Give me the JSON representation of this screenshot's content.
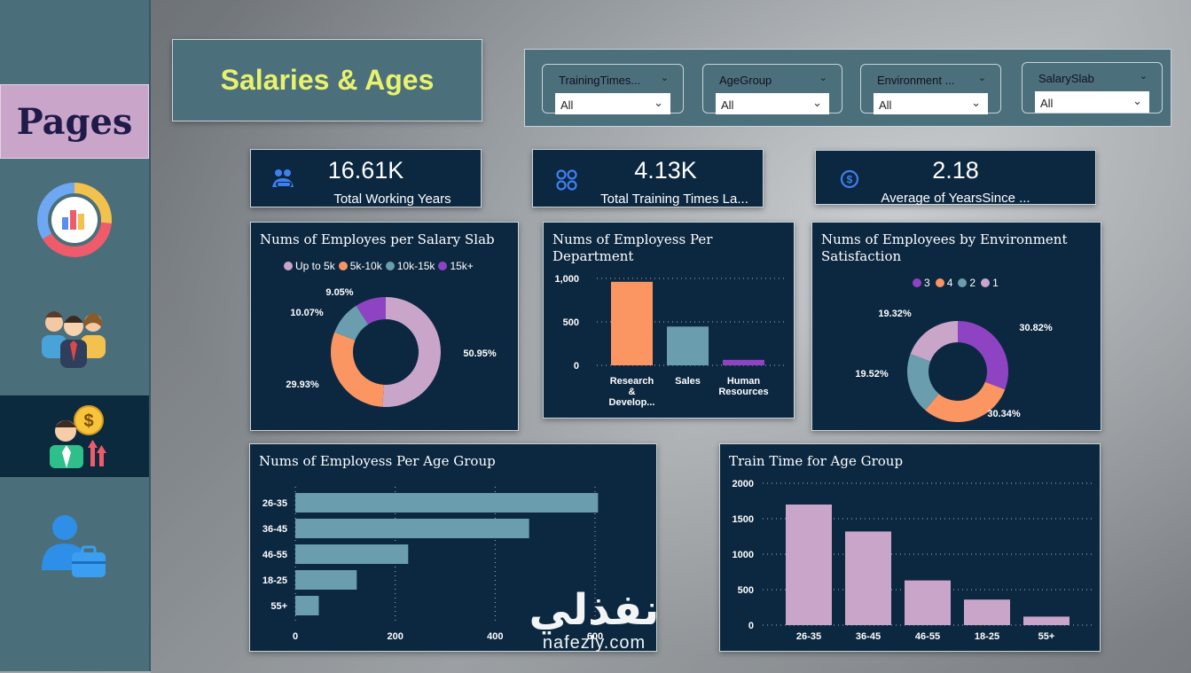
{
  "sidebar": {
    "title": "Pages",
    "nav_icons": [
      "dashboard-chart-icon",
      "team-people-icon",
      "salary-employee-icon",
      "employee-briefcase-icon"
    ],
    "active_index": 2
  },
  "header": {
    "title": "Salaries & Ages"
  },
  "filters": [
    {
      "label": "TrainingTimes...",
      "value": "All"
    },
    {
      "label": "AgeGroup",
      "value": "All"
    },
    {
      "label": "Environment ...",
      "value": "All"
    },
    {
      "label": "SalarySlab",
      "value": "All"
    }
  ],
  "kpis": [
    {
      "value": "16.61K",
      "label": "Total Working Years",
      "icon": "team-handshake-icon"
    },
    {
      "value": "4.13K",
      "label": "Total Training Times La...",
      "icon": "grid-circles-icon"
    },
    {
      "value": "2.18",
      "label": "Average of YearsSince ...",
      "icon": "dollar-coin-icon"
    }
  ],
  "colors": {
    "pink": "#c9a5c9",
    "orange": "#fb9562",
    "teal": "#6a9eaf",
    "purple": "#8e44c2",
    "navy": "#0c2840",
    "title_yellow": "#e9f26d"
  },
  "watermark": {
    "arabic": "نفذلي",
    "latin": "nafezly.com"
  },
  "chart_data": [
    {
      "type": "pie",
      "variant": "donut",
      "title": "Nums of Employes per Salary Slab",
      "legend": [
        "Up to 5k",
        "5k-10k",
        "10k-15k",
        "15k+"
      ],
      "legend_position": "top",
      "slices": [
        {
          "name": "Up to 5k",
          "value": 50.95,
          "label": "50.95%"
        },
        {
          "name": "5k-10k",
          "value": 29.93,
          "label": "29.93%"
        },
        {
          "name": "10k-15k",
          "value": 10.07,
          "label": "10.07%"
        },
        {
          "name": "15k+",
          "value": 9.05,
          "label": "9.05%"
        }
      ]
    },
    {
      "type": "bar",
      "title": "Nums of Employess Per Department",
      "categories": [
        "Research & Develop...",
        "Sales",
        "Human Resources"
      ],
      "category_lines": [
        [
          "Research",
          "&",
          "Develop..."
        ],
        [
          "Sales"
        ],
        [
          "Human",
          "Resources"
        ]
      ],
      "values": [
        961,
        446,
        63
      ],
      "ylim": [
        0,
        1000
      ],
      "yticks": [
        "0",
        "500",
        "1,000"
      ],
      "ytick_values": [
        0,
        500,
        1000
      ],
      "grid": true
    },
    {
      "type": "pie",
      "variant": "donut",
      "title": "Nums of Employees by Environment Satisfaction",
      "legend": [
        "3",
        "4",
        "2",
        "1"
      ],
      "legend_position": "top",
      "slices": [
        {
          "name": "3",
          "value": 30.82,
          "label": "30.82%"
        },
        {
          "name": "4",
          "value": 30.34,
          "label": "30.34%"
        },
        {
          "name": "2",
          "value": 19.52,
          "label": "19.52%"
        },
        {
          "name": "1",
          "value": 19.32,
          "label": "19.32%"
        }
      ]
    },
    {
      "type": "bar",
      "orientation": "horizontal",
      "title": "Nums of Employess Per Age Group",
      "categories": [
        "26-35",
        "36-45",
        "46-55",
        "18-25",
        "55+"
      ],
      "values": [
        606,
        468,
        226,
        123,
        47
      ],
      "xlim": [
        0,
        600
      ],
      "xticks": [
        "0",
        "200",
        "400",
        "600"
      ],
      "xtick_values": [
        0,
        200,
        400,
        600
      ],
      "grid": true
    },
    {
      "type": "bar",
      "title": "Train Time for Age Group",
      "categories": [
        "26-35",
        "36-45",
        "46-55",
        "18-25",
        "55+"
      ],
      "values": [
        1700,
        1320,
        630,
        360,
        120
      ],
      "ylim": [
        0,
        2000
      ],
      "yticks": [
        "0",
        "500",
        "1000",
        "1500",
        "2000"
      ],
      "ytick_values": [
        0,
        500,
        1000,
        1500,
        2000
      ],
      "grid": true
    }
  ]
}
